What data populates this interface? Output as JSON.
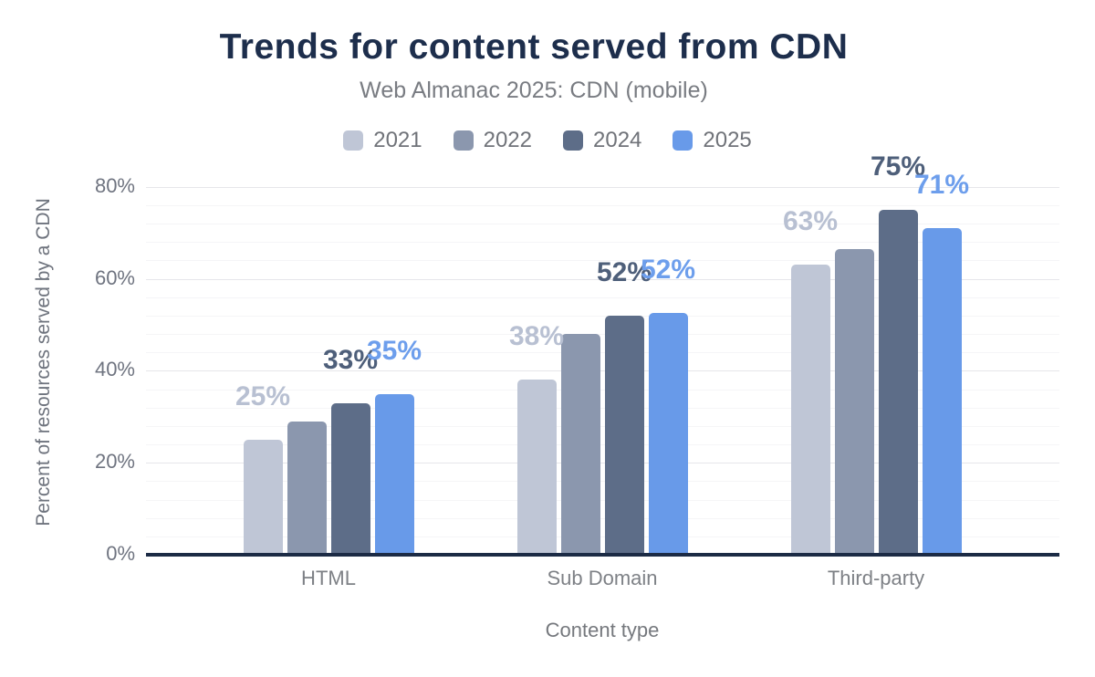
{
  "chart_data": {
    "type": "bar",
    "title": "Trends for content served from CDN",
    "subtitle": "Web Almanac 2025: CDN (mobile)",
    "xlabel": "Content type",
    "ylabel": "Percent of resources served by a CDN",
    "categories": [
      "HTML",
      "Sub Domain",
      "Third-party"
    ],
    "y_ticks": [
      "0%",
      "20%",
      "40%",
      "60%",
      "80%"
    ],
    "ylim": [
      0,
      84
    ],
    "major_tick_interval": 20,
    "minor_grid_interval": 4,
    "grid": true,
    "legend_position": "top",
    "series": [
      {
        "name": "2021",
        "color": "#bfc6d6",
        "label_color": "#b8c0d2",
        "values": [
          25,
          38,
          63
        ],
        "data_labels": [
          "25%",
          "38%",
          "63%"
        ]
      },
      {
        "name": "2022",
        "color": "#8b97ae",
        "label_color": null,
        "values": [
          29,
          48,
          66.5
        ],
        "data_labels": null
      },
      {
        "name": "2024",
        "color": "#5d6d88",
        "label_color": "#4e5f7a",
        "values": [
          33,
          52,
          75
        ],
        "data_labels": [
          "33%",
          "52%",
          "75%"
        ]
      },
      {
        "name": "2025",
        "color": "#689ae9",
        "label_color": "#6d9eec",
        "values": [
          35,
          52.5,
          71
        ],
        "data_labels": [
          "35%",
          "52%",
          "71%"
        ]
      }
    ],
    "colors": {
      "title": "#1d2e4c",
      "subtitle": "#797c82",
      "axis_text": "#6f7480",
      "baseline": "#1c2b45",
      "grid_major": "#e6e6ea",
      "grid_minor": "#f5f5f7"
    }
  }
}
